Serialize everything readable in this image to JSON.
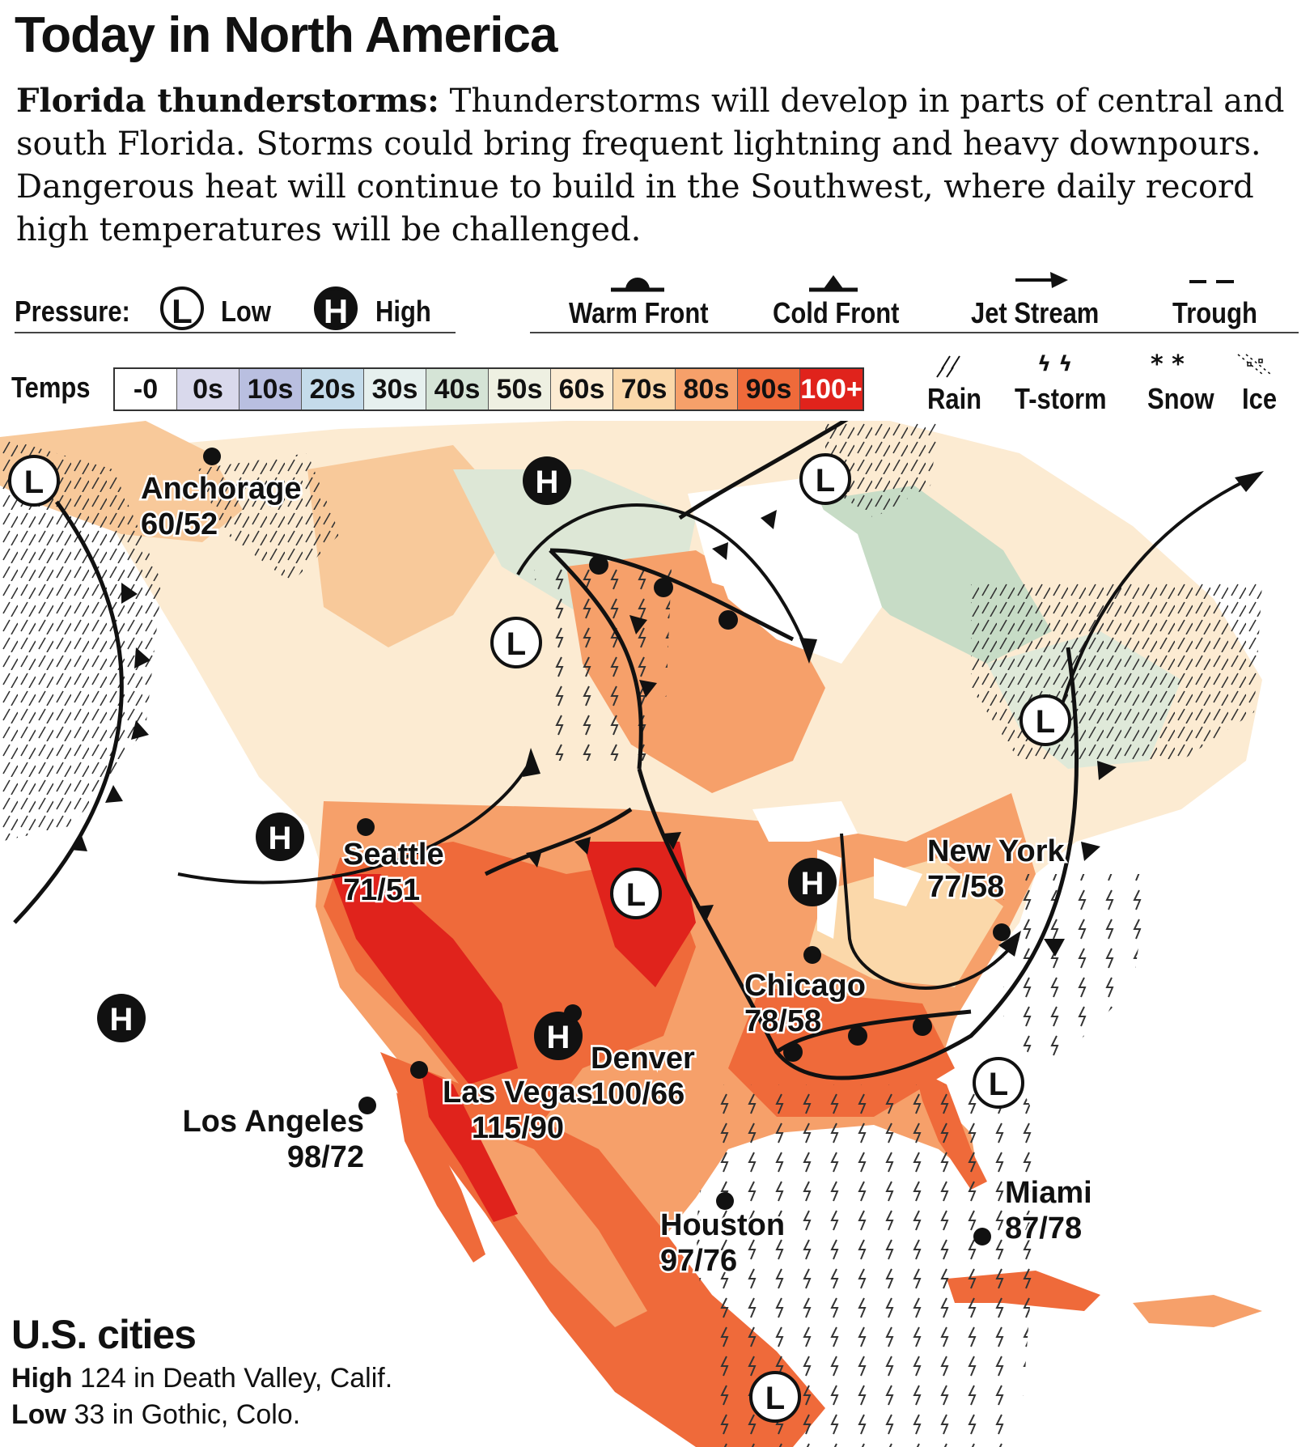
{
  "header": {
    "title": "Today in North America",
    "lede_bold": "Florida thunderstorms:",
    "lede_text": "Thunderstorms will develop in parts of central and south Florida. Storms could bring frequent lightning and heavy downpours. Dangerous heat will continue to build in the Southwest, where daily record high temperatures will be challenged."
  },
  "legend": {
    "pressure_label": "Pressure:",
    "low_symbol": "L",
    "low_label": "Low",
    "high_symbol": "H",
    "high_label": "High",
    "warm_front": "Warm Front",
    "cold_front": "Cold Front",
    "jet_stream": "Jet Stream",
    "trough": "Trough",
    "temps_label": "Temps",
    "temp_bins": [
      {
        "label": "-0",
        "color": "#ffffff"
      },
      {
        "label": "0s",
        "color": "#d9d9ec"
      },
      {
        "label": "10s",
        "color": "#b9bfe0"
      },
      {
        "label": "20s",
        "color": "#c4dbea"
      },
      {
        "label": "30s",
        "color": "#e6f0ee"
      },
      {
        "label": "40s",
        "color": "#d5e4d6"
      },
      {
        "label": "50s",
        "color": "#eef0e2"
      },
      {
        "label": "60s",
        "color": "#fcebd2"
      },
      {
        "label": "70s",
        "color": "#fbd8aa"
      },
      {
        "label": "80s",
        "color": "#f6a06a"
      },
      {
        "label": "90s",
        "color": "#ef6a3a"
      },
      {
        "label": "100+",
        "color": "#e0231c"
      }
    ],
    "rain": "Rain",
    "tstorm": "T-storm",
    "snow": "Snow",
    "ice": "Ice",
    "snow_glyph": "* *",
    "tstorm_glyph": "ϟ ϟ"
  },
  "cities": [
    {
      "name": "Anchorage",
      "temps": "60/52"
    },
    {
      "name": "Seattle",
      "temps": "71/51"
    },
    {
      "name": "Los Angeles",
      "temps": "98/72"
    },
    {
      "name": "Las Vegas",
      "temps": "115/90"
    },
    {
      "name": "Denver",
      "temps": "100/66"
    },
    {
      "name": "Houston",
      "temps": "97/76"
    },
    {
      "name": "Chicago",
      "temps": "78/58"
    },
    {
      "name": "New York",
      "temps": "77/58"
    },
    {
      "name": "Miami",
      "temps": "87/78"
    }
  ],
  "us_cities": {
    "heading": "U.S. cities",
    "high_label": "High",
    "high_value": "124 in Death Valley, Calif.",
    "low_label": "Low",
    "low_value": "33 in Gothic, Colo."
  }
}
